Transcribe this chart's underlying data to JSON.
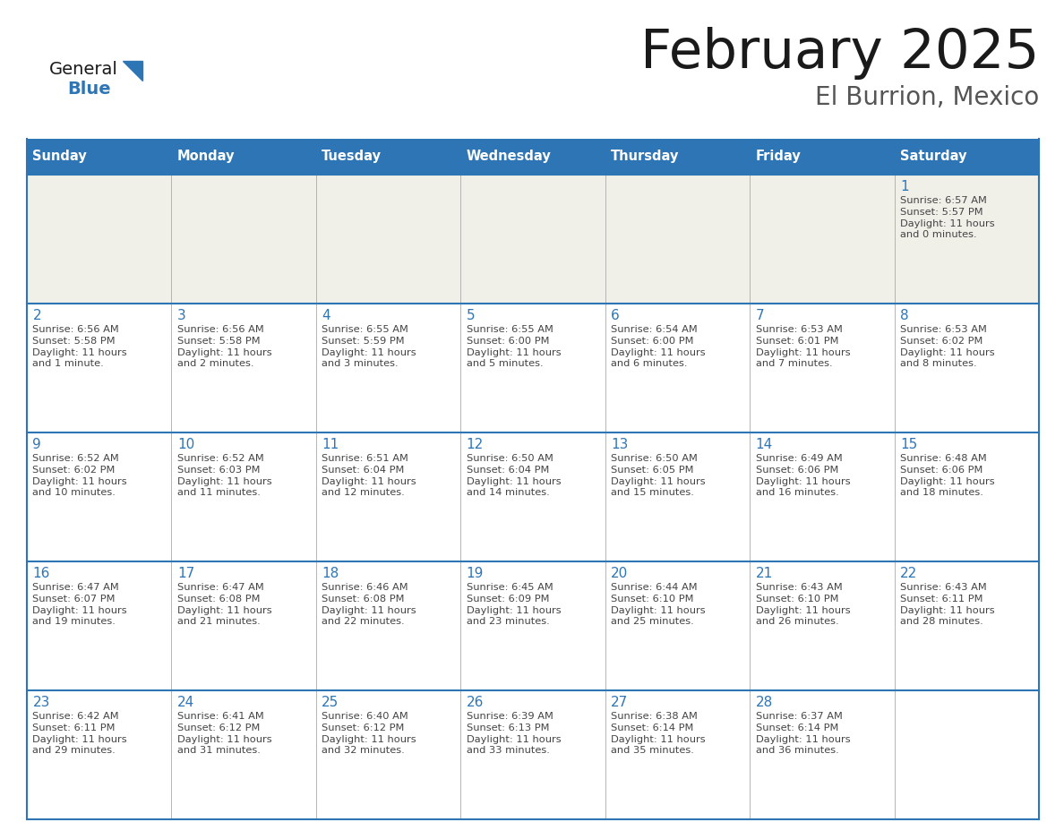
{
  "title": "February 2025",
  "subtitle": "El Burrion, Mexico",
  "days_of_week": [
    "Sunday",
    "Monday",
    "Tuesday",
    "Wednesday",
    "Thursday",
    "Friday",
    "Saturday"
  ],
  "header_bg": "#2E75B6",
  "header_text_color": "#FFFFFF",
  "cell_bg": "#FFFFFF",
  "first_row_bg": "#F0EFE8",
  "border_color": "#2E75B6",
  "grid_color": "#AAAAAA",
  "day_number_color": "#2E75B6",
  "cell_text_color": "#444444",
  "title_color": "#1A1A1A",
  "subtitle_color": "#555555",
  "logo_general_color": "#1A1A1A",
  "logo_blue_color": "#2E75B6",
  "weeks": [
    {
      "days": [
        {
          "day": null,
          "info": null
        },
        {
          "day": null,
          "info": null
        },
        {
          "day": null,
          "info": null
        },
        {
          "day": null,
          "info": null
        },
        {
          "day": null,
          "info": null
        },
        {
          "day": null,
          "info": null
        },
        {
          "day": 1,
          "info": "Sunrise: 6:57 AM\nSunset: 5:57 PM\nDaylight: 11 hours\nand 0 minutes."
        }
      ]
    },
    {
      "days": [
        {
          "day": 2,
          "info": "Sunrise: 6:56 AM\nSunset: 5:58 PM\nDaylight: 11 hours\nand 1 minute."
        },
        {
          "day": 3,
          "info": "Sunrise: 6:56 AM\nSunset: 5:58 PM\nDaylight: 11 hours\nand 2 minutes."
        },
        {
          "day": 4,
          "info": "Sunrise: 6:55 AM\nSunset: 5:59 PM\nDaylight: 11 hours\nand 3 minutes."
        },
        {
          "day": 5,
          "info": "Sunrise: 6:55 AM\nSunset: 6:00 PM\nDaylight: 11 hours\nand 5 minutes."
        },
        {
          "day": 6,
          "info": "Sunrise: 6:54 AM\nSunset: 6:00 PM\nDaylight: 11 hours\nand 6 minutes."
        },
        {
          "day": 7,
          "info": "Sunrise: 6:53 AM\nSunset: 6:01 PM\nDaylight: 11 hours\nand 7 minutes."
        },
        {
          "day": 8,
          "info": "Sunrise: 6:53 AM\nSunset: 6:02 PM\nDaylight: 11 hours\nand 8 minutes."
        }
      ]
    },
    {
      "days": [
        {
          "day": 9,
          "info": "Sunrise: 6:52 AM\nSunset: 6:02 PM\nDaylight: 11 hours\nand 10 minutes."
        },
        {
          "day": 10,
          "info": "Sunrise: 6:52 AM\nSunset: 6:03 PM\nDaylight: 11 hours\nand 11 minutes."
        },
        {
          "day": 11,
          "info": "Sunrise: 6:51 AM\nSunset: 6:04 PM\nDaylight: 11 hours\nand 12 minutes."
        },
        {
          "day": 12,
          "info": "Sunrise: 6:50 AM\nSunset: 6:04 PM\nDaylight: 11 hours\nand 14 minutes."
        },
        {
          "day": 13,
          "info": "Sunrise: 6:50 AM\nSunset: 6:05 PM\nDaylight: 11 hours\nand 15 minutes."
        },
        {
          "day": 14,
          "info": "Sunrise: 6:49 AM\nSunset: 6:06 PM\nDaylight: 11 hours\nand 16 minutes."
        },
        {
          "day": 15,
          "info": "Sunrise: 6:48 AM\nSunset: 6:06 PM\nDaylight: 11 hours\nand 18 minutes."
        }
      ]
    },
    {
      "days": [
        {
          "day": 16,
          "info": "Sunrise: 6:47 AM\nSunset: 6:07 PM\nDaylight: 11 hours\nand 19 minutes."
        },
        {
          "day": 17,
          "info": "Sunrise: 6:47 AM\nSunset: 6:08 PM\nDaylight: 11 hours\nand 21 minutes."
        },
        {
          "day": 18,
          "info": "Sunrise: 6:46 AM\nSunset: 6:08 PM\nDaylight: 11 hours\nand 22 minutes."
        },
        {
          "day": 19,
          "info": "Sunrise: 6:45 AM\nSunset: 6:09 PM\nDaylight: 11 hours\nand 23 minutes."
        },
        {
          "day": 20,
          "info": "Sunrise: 6:44 AM\nSunset: 6:10 PM\nDaylight: 11 hours\nand 25 minutes."
        },
        {
          "day": 21,
          "info": "Sunrise: 6:43 AM\nSunset: 6:10 PM\nDaylight: 11 hours\nand 26 minutes."
        },
        {
          "day": 22,
          "info": "Sunrise: 6:43 AM\nSunset: 6:11 PM\nDaylight: 11 hours\nand 28 minutes."
        }
      ]
    },
    {
      "days": [
        {
          "day": 23,
          "info": "Sunrise: 6:42 AM\nSunset: 6:11 PM\nDaylight: 11 hours\nand 29 minutes."
        },
        {
          "day": 24,
          "info": "Sunrise: 6:41 AM\nSunset: 6:12 PM\nDaylight: 11 hours\nand 31 minutes."
        },
        {
          "day": 25,
          "info": "Sunrise: 6:40 AM\nSunset: 6:12 PM\nDaylight: 11 hours\nand 32 minutes."
        },
        {
          "day": 26,
          "info": "Sunrise: 6:39 AM\nSunset: 6:13 PM\nDaylight: 11 hours\nand 33 minutes."
        },
        {
          "day": 27,
          "info": "Sunrise: 6:38 AM\nSunset: 6:14 PM\nDaylight: 11 hours\nand 35 minutes."
        },
        {
          "day": 28,
          "info": "Sunrise: 6:37 AM\nSunset: 6:14 PM\nDaylight: 11 hours\nand 36 minutes."
        },
        {
          "day": null,
          "info": null
        }
      ]
    }
  ]
}
